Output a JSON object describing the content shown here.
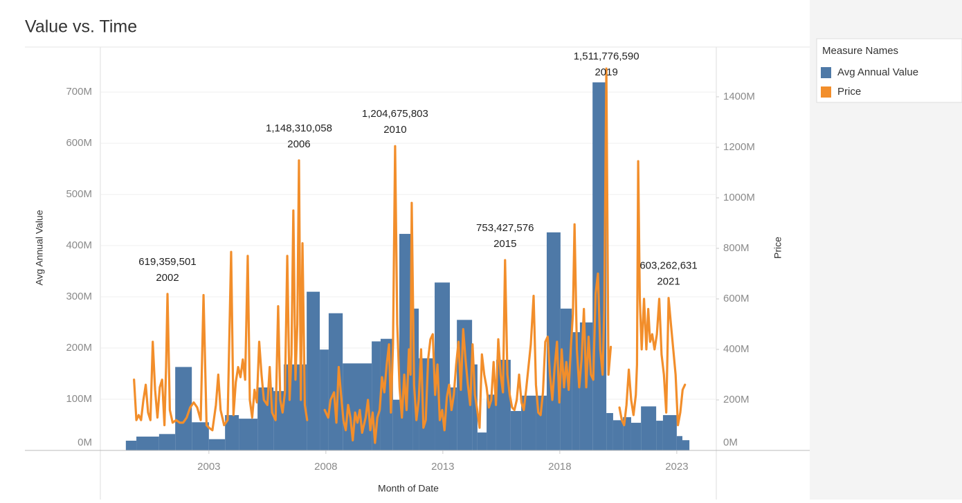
{
  "chart_data": {
    "type": "combo",
    "title": "Value vs. Time",
    "x_label": "Month of Date",
    "y_label": "Avg Annual Value",
    "y2_label": "Price",
    "legend_title": "Measure Names",
    "legend": "right",
    "grid": true,
    "xlim": [
      1998.36,
      2024.69
    ],
    "xticks": [
      2003,
      2008,
      2013,
      2018,
      2023
    ],
    "ylim": [
      0,
      788000000
    ],
    "yticks": [
      {
        "value": 0,
        "label": "0M"
      },
      {
        "value": 100000000,
        "label": "100M"
      },
      {
        "value": 200000000,
        "label": "200M"
      },
      {
        "value": 300000000,
        "label": "300M"
      },
      {
        "value": 400000000,
        "label": "400M"
      },
      {
        "value": 500000000,
        "label": "500M"
      },
      {
        "value": 600000000,
        "label": "600M"
      },
      {
        "value": 700000000,
        "label": "700M"
      }
    ],
    "y2lim": [
      0,
      1597000000
    ],
    "y2ticks": [
      {
        "value": 0,
        "label": "0M"
      },
      {
        "value": 200000000,
        "label": "200M"
      },
      {
        "value": 400000000,
        "label": "400M"
      },
      {
        "value": 600000000,
        "label": "600M"
      },
      {
        "value": 800000000,
        "label": "800M"
      },
      {
        "value": 1000000000,
        "label": "1000M"
      },
      {
        "value": 1200000000,
        "label": "1200M"
      },
      {
        "value": 1400000000,
        "label": "1400M"
      }
    ],
    "series": [
      {
        "name": "Avg Annual Value",
        "type": "bar",
        "color": "#4e79a7",
        "bins": [
          1999.45,
          1999.9,
          2000.87,
          2001.56,
          2002.27,
          2003.0,
          2003.69,
          2004.28,
          2005.08,
          2005.76,
          2006.2,
          2007.18,
          2007.74,
          2008.12,
          2008.72,
          2009.96,
          2010.34,
          2010.87,
          2011.14,
          2011.73,
          2011.97,
          2012.65,
          2013.3,
          2013.6,
          2014.25,
          2014.48,
          2014.87,
          2015.28,
          2015.9,
          2016.35,
          2016.97,
          2017.44,
          2018.03,
          2018.51,
          2018.86,
          2019.4,
          2019.99,
          2020.28,
          2020.7,
          2021.05,
          2021.47,
          2022.12,
          2022.41,
          2023.0,
          2023.24,
          2023.54
        ],
        "values": [
          19000000.0,
          27000000.0,
          32000000.0,
          163000000.0,
          55000000.0,
          22000000.0,
          69000000.0,
          62000000.0,
          123000000.0,
          116000000.0,
          168000000.0,
          310000000.0,
          197000000.0,
          268000000.0,
          170000000.0,
          213000000.0,
          218000000.0,
          99000000.0,
          423000000.0,
          277000000.0,
          180000000.0,
          328000000.0,
          123000000.0,
          255000000.0,
          168000000.0,
          35000000.0,
          109000000.0,
          177000000.0,
          77000000.0,
          107000000.0,
          107000000.0,
          426000000.0,
          277000000.0,
          231000000.0,
          250000000.0,
          719000000.0,
          73000000.0,
          59000000.0,
          65000000.0,
          54000000.0,
          86000000.0,
          58000000.0,
          69000000.0,
          28000000.0,
          20000000.0
        ]
      },
      {
        "name": "Price",
        "type": "line",
        "axis": "y2",
        "color": "#f28e2b",
        "x": [
          1999.8,
          1999.9,
          2000.0,
          2000.1,
          2000.2,
          2000.3,
          2000.4,
          2000.5,
          2000.6,
          2000.7,
          2000.8,
          2000.9,
          2001.0,
          2001.1,
          2001.17,
          2001.23,
          2001.33,
          2001.45,
          2001.6,
          2001.75,
          2001.9,
          2002.05,
          2002.2,
          2002.35,
          2002.5,
          2002.65,
          2002.77,
          2002.9,
          2003.0,
          2003.15,
          2003.3,
          2003.4,
          2003.5,
          2003.65,
          2003.8,
          2003.95,
          2004.05,
          2004.15,
          2004.25,
          2004.35,
          2004.45,
          2004.55,
          2004.66,
          2004.75,
          2004.85,
          2004.95,
          2005.05,
          2005.15,
          2005.25,
          2005.35,
          2005.5,
          2005.6,
          2005.7,
          2005.85,
          2005.96,
          2006.05,
          2006.15,
          2006.25,
          2006.35,
          2006.45,
          2006.53,
          2006.61,
          2006.7,
          2006.78,
          2006.85,
          2006.93,
          2007.0,
          2007.1,
          2007.2,
          2007.6,
          2007.95,
          2008.1,
          2008.2,
          2008.35,
          2008.45,
          2008.55,
          2008.65,
          2008.75,
          2008.85,
          2008.95,
          2009.05,
          2009.15,
          2009.25,
          2009.35,
          2009.45,
          2009.55,
          2009.7,
          2009.8,
          2009.9,
          2010.0,
          2010.1,
          2010.2,
          2010.3,
          2010.4,
          2010.5,
          2010.6,
          2010.7,
          2010.78,
          2010.87,
          2010.96,
          2011.05,
          2011.15,
          2011.25,
          2011.35,
          2011.45,
          2011.55,
          2011.62,
          2011.67,
          2011.77,
          2011.87,
          2011.97,
          2012.07,
          2012.17,
          2012.27,
          2012.37,
          2012.47,
          2012.57,
          2012.67,
          2012.77,
          2012.87,
          2012.97,
          2013.07,
          2013.17,
          2013.27,
          2013.37,
          2013.47,
          2013.57,
          2013.67,
          2013.77,
          2013.87,
          2013.97,
          2014.07,
          2014.17,
          2014.27,
          2014.37,
          2014.47,
          2014.57,
          2014.67,
          2014.77,
          2014.87,
          2014.97,
          2015.07,
          2015.17,
          2015.27,
          2015.37,
          2015.47,
          2015.57,
          2015.66,
          2015.76,
          2015.86,
          2015.96,
          2016.06,
          2016.16,
          2016.26,
          2016.36,
          2016.46,
          2016.56,
          2016.66,
          2016.76,
          2016.88,
          2016.98,
          2017.08,
          2017.18,
          2017.28,
          2017.38,
          2017.48,
          2017.58,
          2017.68,
          2017.78,
          2017.88,
          2017.98,
          2018.08,
          2018.18,
          2018.28,
          2018.38,
          2018.48,
          2018.56,
          2018.63,
          2018.73,
          2018.83,
          2018.93,
          2019.03,
          2019.13,
          2019.23,
          2019.33,
          2019.43,
          2019.53,
          2019.63,
          2019.73,
          2019.83,
          2019.9,
          2019.99,
          2020.08,
          2020.18,
          2020.4,
          2020.55,
          2020.65,
          2020.75,
          2020.85,
          2020.95,
          2021.05,
          2021.15,
          2021.25,
          2021.3,
          2021.35,
          2021.42,
          2021.5,
          2021.6,
          2021.7,
          2021.78,
          2021.86,
          2021.95,
          2022.05,
          2022.15,
          2022.25,
          2022.35,
          2022.45,
          2022.55,
          2022.65,
          2022.75,
          2022.85,
          2022.95,
          2023.05,
          2023.15,
          2023.25,
          2023.35
        ],
        "values": [
          280000000.0,
          120000000.0,
          140000000.0,
          120000000.0,
          200000000.0,
          260000000.0,
          150000000.0,
          120000000.0,
          430000000.0,
          240000000.0,
          130000000.0,
          250000000.0,
          280000000.0,
          100000000.0,
          330000000.0,
          619359501,
          160000000.0,
          110000000.0,
          120000000.0,
          110000000.0,
          110000000.0,
          130000000.0,
          170000000.0,
          190000000.0,
          170000000.0,
          120000000.0,
          615000000.0,
          100000000.0,
          90000000.0,
          80000000.0,
          180000000.0,
          300000000.0,
          160000000.0,
          100000000.0,
          120000000.0,
          786000000.0,
          140000000.0,
          270000000.0,
          330000000.0,
          290000000.0,
          360000000.0,
          280000000.0,
          770000000.0,
          200000000.0,
          130000000.0,
          240000000.0,
          190000000.0,
          430000000.0,
          300000000.0,
          200000000.0,
          180000000.0,
          330000000.0,
          150000000.0,
          120000000.0,
          571000000.0,
          200000000.0,
          150000000.0,
          230000000.0,
          770000000.0,
          200000000.0,
          380000000.0,
          950000000.0,
          280000000.0,
          500000000.0,
          1148310058,
          200000000.0,
          820000000.0,
          180000000.0,
          120000000.0,
          null,
          160000000.0,
          130000000.0,
          200000000.0,
          230000000.0,
          110000000.0,
          330000000.0,
          220000000.0,
          120000000.0,
          80000000.0,
          180000000.0,
          130000000.0,
          40000000.0,
          150000000.0,
          110000000.0,
          160000000.0,
          70000000.0,
          130000000.0,
          200000000.0,
          80000000.0,
          150000000.0,
          30000000.0,
          130000000.0,
          160000000.0,
          290000000.0,
          230000000.0,
          340000000.0,
          420000000.0,
          150000000.0,
          420000000.0,
          1204675803,
          500000000.0,
          250000000.0,
          130000000.0,
          300000000.0,
          160000000.0,
          400000000.0,
          300000000.0,
          980000000.0,
          260000000.0,
          120000000.0,
          200000000.0,
          400000000.0,
          90000000.0,
          120000000.0,
          360000000.0,
          440000000.0,
          460000000.0,
          220000000.0,
          340000000.0,
          120000000.0,
          160000000.0,
          80000000.0,
          210000000.0,
          260000000.0,
          160000000.0,
          220000000.0,
          340000000.0,
          430000000.0,
          240000000.0,
          480000000.0,
          360000000.0,
          260000000.0,
          180000000.0,
          420000000.0,
          220000000.0,
          160000000.0,
          90000000.0,
          380000000.0,
          300000000.0,
          250000000.0,
          170000000.0,
          200000000.0,
          350000000.0,
          180000000.0,
          440000000.0,
          300000000.0,
          230000000.0,
          753427576,
          300000000.0,
          220000000.0,
          170000000.0,
          160000000.0,
          200000000.0,
          300000000.0,
          190000000.0,
          160000000.0,
          240000000.0,
          330000000.0,
          420000000.0,
          612000000.0,
          260000000.0,
          150000000.0,
          140000000.0,
          230000000.0,
          430000000.0,
          450000000.0,
          300000000.0,
          200000000.0,
          330000000.0,
          430000000.0,
          190000000.0,
          400000000.0,
          250000000.0,
          350000000.0,
          240000000.0,
          420000000.0,
          540000000.0,
          895000000.0,
          400000000.0,
          250000000.0,
          360000000.0,
          560000000.0,
          250000000.0,
          450000000.0,
          300000000.0,
          280000000.0,
          620000000.0,
          700000000.0,
          400000000.0,
          300000000.0,
          560000000.0,
          1511776590,
          300000000.0,
          410000000.0,
          null,
          170000000.0,
          120000000.0,
          100000000.0,
          180000000.0,
          320000000.0,
          200000000.0,
          140000000.0,
          220000000.0,
          340000000.0,
          1145000000.0,
          600000000.0,
          400000000.0,
          600000000.0,
          400000000.0,
          560000000.0,
          430000000.0,
          460000000.0,
          400000000.0,
          460000000.0,
          600000000.0,
          380000000.0,
          300000000.0,
          150000000.0,
          603262631,
          500000000.0,
          400000000.0,
          300000000.0,
          100000000.0,
          150000000.0,
          240000000.0,
          260000000.0
        ]
      }
    ],
    "annotations": [
      {
        "text": "619,359,501",
        "label": "2002",
        "x": 2001.23,
        "y": 619359501
      },
      {
        "text": "1,148,310,058",
        "label": "2006",
        "x": 2006.85,
        "y": 1148310058
      },
      {
        "text": "1,204,675,803",
        "label": "2010",
        "x": 2010.96,
        "y": 1204675803
      },
      {
        "text": "753,427,576",
        "label": "2015",
        "x": 2015.66,
        "y": 753427576
      },
      {
        "text": "1,511,776,590",
        "label": "2019",
        "x": 2019.99,
        "y": 1511776590
      },
      {
        "text": "603,262,631",
        "label": "2021",
        "x": 2022.65,
        "y": 603262631
      }
    ]
  }
}
